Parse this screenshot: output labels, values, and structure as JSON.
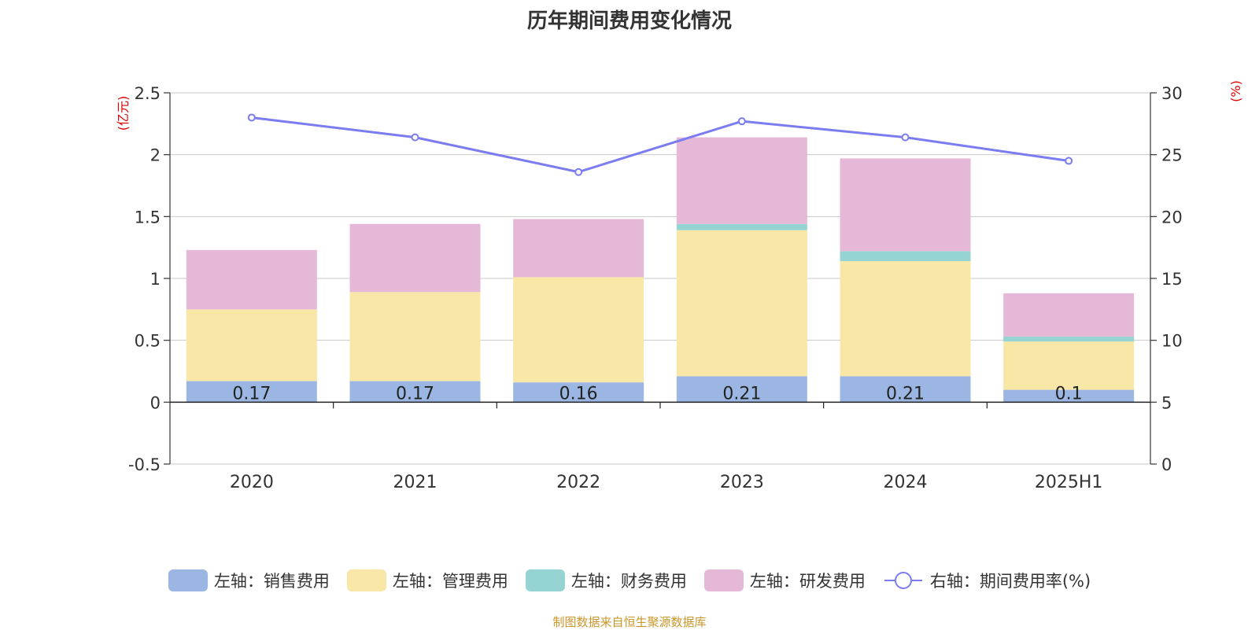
{
  "title": "历年期间费用变化情况",
  "source": "制图数据来自恒生聚源数据库",
  "colors": {
    "sales": "#9bb6e2",
    "admin": "#f8e7a6",
    "finance": "#96d4d4",
    "rnd": "#e6b8d8",
    "ratio": "#7b7cf0",
    "axis_unit": "#e00000"
  },
  "legend": [
    {
      "label": "左轴：销售费用",
      "type": "bar",
      "color": "#9bb6e2"
    },
    {
      "label": "左轴：管理费用",
      "type": "bar",
      "color": "#f8e7a6"
    },
    {
      "label": "左轴：财务费用",
      "type": "bar",
      "color": "#96d4d4"
    },
    {
      "label": "左轴：研发费用",
      "type": "bar",
      "color": "#e6b8d8"
    },
    {
      "label": "右轴：期间费用率(%)",
      "type": "line",
      "color": "#7b7cf0"
    }
  ],
  "chart_data": {
    "type": "bar",
    "stacked": true,
    "title": "历年期间费用变化情况",
    "categories": [
      "2020",
      "2021",
      "2022",
      "2023",
      "2024",
      "2025H1"
    ],
    "left_axis": {
      "unit": "(亿元)",
      "ylim": [
        -0.5,
        2.5
      ],
      "ticks": [
        "-0.5",
        "0",
        "0.5",
        "1",
        "1.5",
        "2",
        "2.5"
      ]
    },
    "right_axis": {
      "unit": "(%)",
      "ylim": [
        0,
        30
      ],
      "ticks": [
        "0",
        "5",
        "10",
        "15",
        "20",
        "25",
        "30"
      ]
    },
    "grid": true,
    "legend_position": "bottom",
    "series": [
      {
        "name": "左轴：销售费用",
        "axis": "left",
        "values": [
          0.17,
          0.17,
          0.16,
          0.21,
          0.21,
          0.1
        ],
        "labels": [
          "0.17",
          "0.17",
          "0.16",
          "0.21",
          "0.21",
          "0.1"
        ]
      },
      {
        "name": "左轴：管理费用",
        "axis": "left",
        "values": [
          0.58,
          0.72,
          0.85,
          1.18,
          0.93,
          0.39
        ]
      },
      {
        "name": "左轴：财务费用",
        "axis": "left",
        "values": [
          0.0,
          0.0,
          0.0,
          0.05,
          0.08,
          0.04
        ]
      },
      {
        "name": "左轴：研发费用",
        "axis": "left",
        "values": [
          0.48,
          0.55,
          0.47,
          0.7,
          0.75,
          0.35
        ]
      },
      {
        "name": "右轴：期间费用率(%)",
        "axis": "right",
        "type": "line",
        "values": [
          28.0,
          26.4,
          23.6,
          27.7,
          26.4,
          24.5
        ]
      }
    ]
  }
}
